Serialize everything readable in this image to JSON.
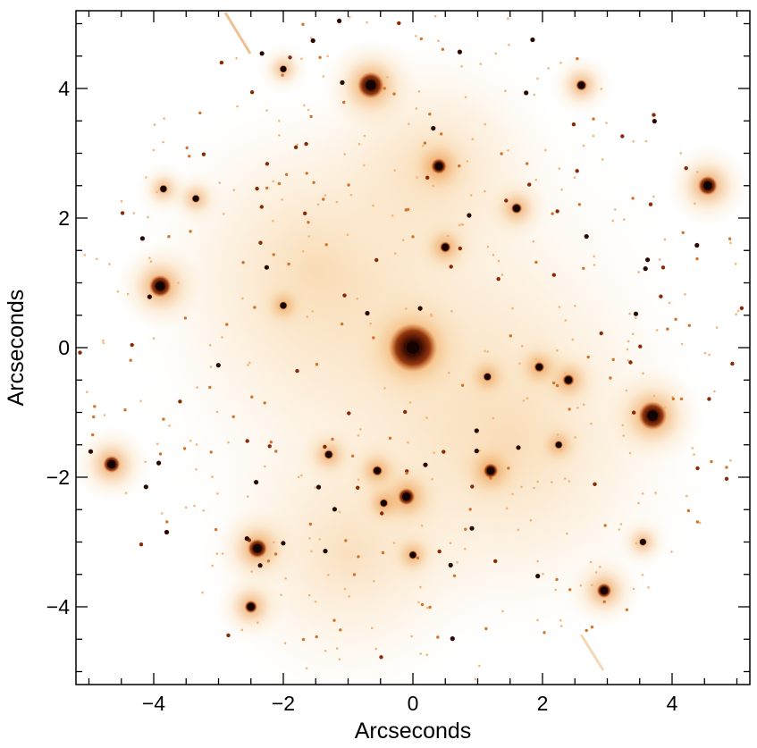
{
  "chart_data": {
    "type": "image",
    "xlabel": "Arcseconds",
    "ylabel": "Arcseconds",
    "xlim": [
      -5.2,
      5.2
    ],
    "ylim": [
      -5.2,
      5.2
    ],
    "x_ticks": [
      -4,
      -2,
      0,
      2,
      4
    ],
    "y_ticks": [
      -4,
      -2,
      0,
      2,
      4
    ],
    "x_tick_labels": [
      "−4",
      "−2",
      "0",
      "2",
      "4"
    ],
    "y_tick_labels": [
      "−4",
      "−2",
      "0",
      "2",
      "4"
    ],
    "colormap": [
      "#ffffff",
      "#f7cf98",
      "#e07a22",
      "#8a2a05",
      "#140300"
    ],
    "bright_sources": [
      {
        "x": 0.0,
        "y": 0.0,
        "m": 1.0
      },
      {
        "x": -0.65,
        "y": 4.05,
        "m": 0.72
      },
      {
        "x": 3.7,
        "y": -1.05,
        "m": 0.75
      },
      {
        "x": -3.9,
        "y": 0.95,
        "m": 0.65
      },
      {
        "x": 4.55,
        "y": 2.5,
        "m": 0.6
      },
      {
        "x": -2.4,
        "y": -3.1,
        "m": 0.6
      },
      {
        "x": -4.65,
        "y": -1.8,
        "m": 0.55
      },
      {
        "x": 0.4,
        "y": 2.8,
        "m": 0.52
      },
      {
        "x": -0.1,
        "y": -2.3,
        "m": 0.55
      },
      {
        "x": 1.2,
        "y": -1.9,
        "m": 0.5
      },
      {
        "x": 2.95,
        "y": -3.75,
        "m": 0.5
      },
      {
        "x": -2.5,
        "y": -4.0,
        "m": 0.45
      },
      {
        "x": 2.6,
        "y": 4.05,
        "m": 0.4
      },
      {
        "x": 1.6,
        "y": 2.15,
        "m": 0.4
      },
      {
        "x": 0.5,
        "y": 1.55,
        "m": 0.4
      },
      {
        "x": 2.4,
        "y": -0.5,
        "m": 0.42
      },
      {
        "x": 1.95,
        "y": -0.3,
        "m": 0.38
      },
      {
        "x": -0.55,
        "y": -1.9,
        "m": 0.38
      },
      {
        "x": -1.3,
        "y": -1.65,
        "m": 0.35
      },
      {
        "x": -2.0,
        "y": 0.65,
        "m": 0.3
      },
      {
        "x": 0.0,
        "y": -3.2,
        "m": 0.32
      },
      {
        "x": -3.85,
        "y": 2.45,
        "m": 0.3
      },
      {
        "x": -3.35,
        "y": 2.3,
        "m": 0.3
      },
      {
        "x": 1.15,
        "y": -0.45,
        "m": 0.32
      },
      {
        "x": 2.25,
        "y": -1.5,
        "m": 0.3
      },
      {
        "x": -0.45,
        "y": -2.4,
        "m": 0.32
      },
      {
        "x": -2.0,
        "y": 4.3,
        "m": 0.28
      },
      {
        "x": 3.55,
        "y": -3.0,
        "m": 0.28
      }
    ]
  }
}
